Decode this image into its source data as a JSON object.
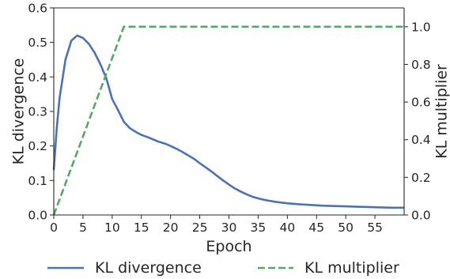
{
  "chart_data": {
    "type": "line",
    "xlabel": "Epoch",
    "ylabel_left": "KL divergence",
    "ylabel_right": "KL multiplier",
    "xlim": [
      0,
      60
    ],
    "ylim_left": [
      0,
      0.6
    ],
    "ylim_right": [
      0,
      1.1
    ],
    "x_ticks": [
      0,
      5,
      10,
      15,
      20,
      25,
      30,
      35,
      40,
      45,
      50,
      55
    ],
    "y_ticks_left": [
      "0.0",
      "0.1",
      "0.2",
      "0.3",
      "0.4",
      "0.5",
      "0.6"
    ],
    "y_ticks_right": [
      "0.0",
      "0.2",
      "0.4",
      "0.6",
      "0.8",
      "1.0"
    ],
    "grid": false,
    "legend_placement": "bottom",
    "series": [
      {
        "name": "KL divergence",
        "axis": "left",
        "color": "#4c72b0",
        "style": "solid",
        "x": [
          0,
          0.5,
          1,
          2,
          3,
          4,
          5,
          6,
          7,
          8,
          9,
          10,
          11,
          12,
          13,
          14,
          15,
          16,
          17,
          18,
          19,
          20,
          21,
          22,
          23,
          24,
          25,
          26,
          27,
          28,
          29,
          30,
          31,
          32,
          33,
          34,
          35,
          36,
          37,
          38,
          39,
          40,
          42,
          44,
          46,
          48,
          50,
          52,
          54,
          56,
          58,
          60
        ],
        "y": [
          0.13,
          0.25,
          0.34,
          0.45,
          0.505,
          0.52,
          0.513,
          0.496,
          0.47,
          0.436,
          0.396,
          0.336,
          0.304,
          0.27,
          0.252,
          0.241,
          0.232,
          0.226,
          0.219,
          0.212,
          0.207,
          0.2,
          0.192,
          0.183,
          0.173,
          0.163,
          0.15,
          0.138,
          0.126,
          0.113,
          0.1,
          0.088,
          0.077,
          0.068,
          0.06,
          0.053,
          0.048,
          0.044,
          0.041,
          0.038,
          0.036,
          0.034,
          0.031,
          0.029,
          0.027,
          0.026,
          0.025,
          0.024,
          0.023,
          0.022,
          0.021,
          0.021
        ]
      },
      {
        "name": "KL multiplier",
        "axis": "right",
        "color": "#55a868",
        "style": "dashed",
        "x": [
          0,
          12,
          60
        ],
        "y": [
          0,
          1.0,
          1.0
        ]
      }
    ]
  }
}
